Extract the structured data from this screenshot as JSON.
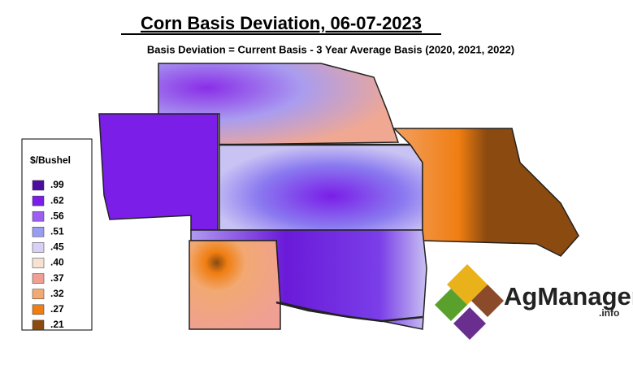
{
  "header": {
    "title": "Corn Basis Deviation, 06-07-2023",
    "subtitle": "Basis Deviation = Current Basis - 3 Year Average Basis (2020, 2021, 2022)"
  },
  "legend": {
    "title": "$/Bushel",
    "items": [
      {
        "label": ".99",
        "color": "#4a0d9e"
      },
      {
        "label": ".62",
        "color": "#7a1ee8"
      },
      {
        "label": ".56",
        "color": "#9d5df2"
      },
      {
        "label": ".51",
        "color": "#9a9cf2"
      },
      {
        "label": ".45",
        "color": "#d9d0f6"
      },
      {
        "label": ".40",
        "color": "#f7e1d2"
      },
      {
        "label": ".37",
        "color": "#f0a092"
      },
      {
        "label": ".32",
        "color": "#f2a972"
      },
      {
        "label": ".27",
        "color": "#f07e12"
      },
      {
        "label": ".21",
        "color": "#8a4a10"
      }
    ]
  },
  "logo": {
    "name": "AgManager",
    "suffix": ".info"
  }
}
